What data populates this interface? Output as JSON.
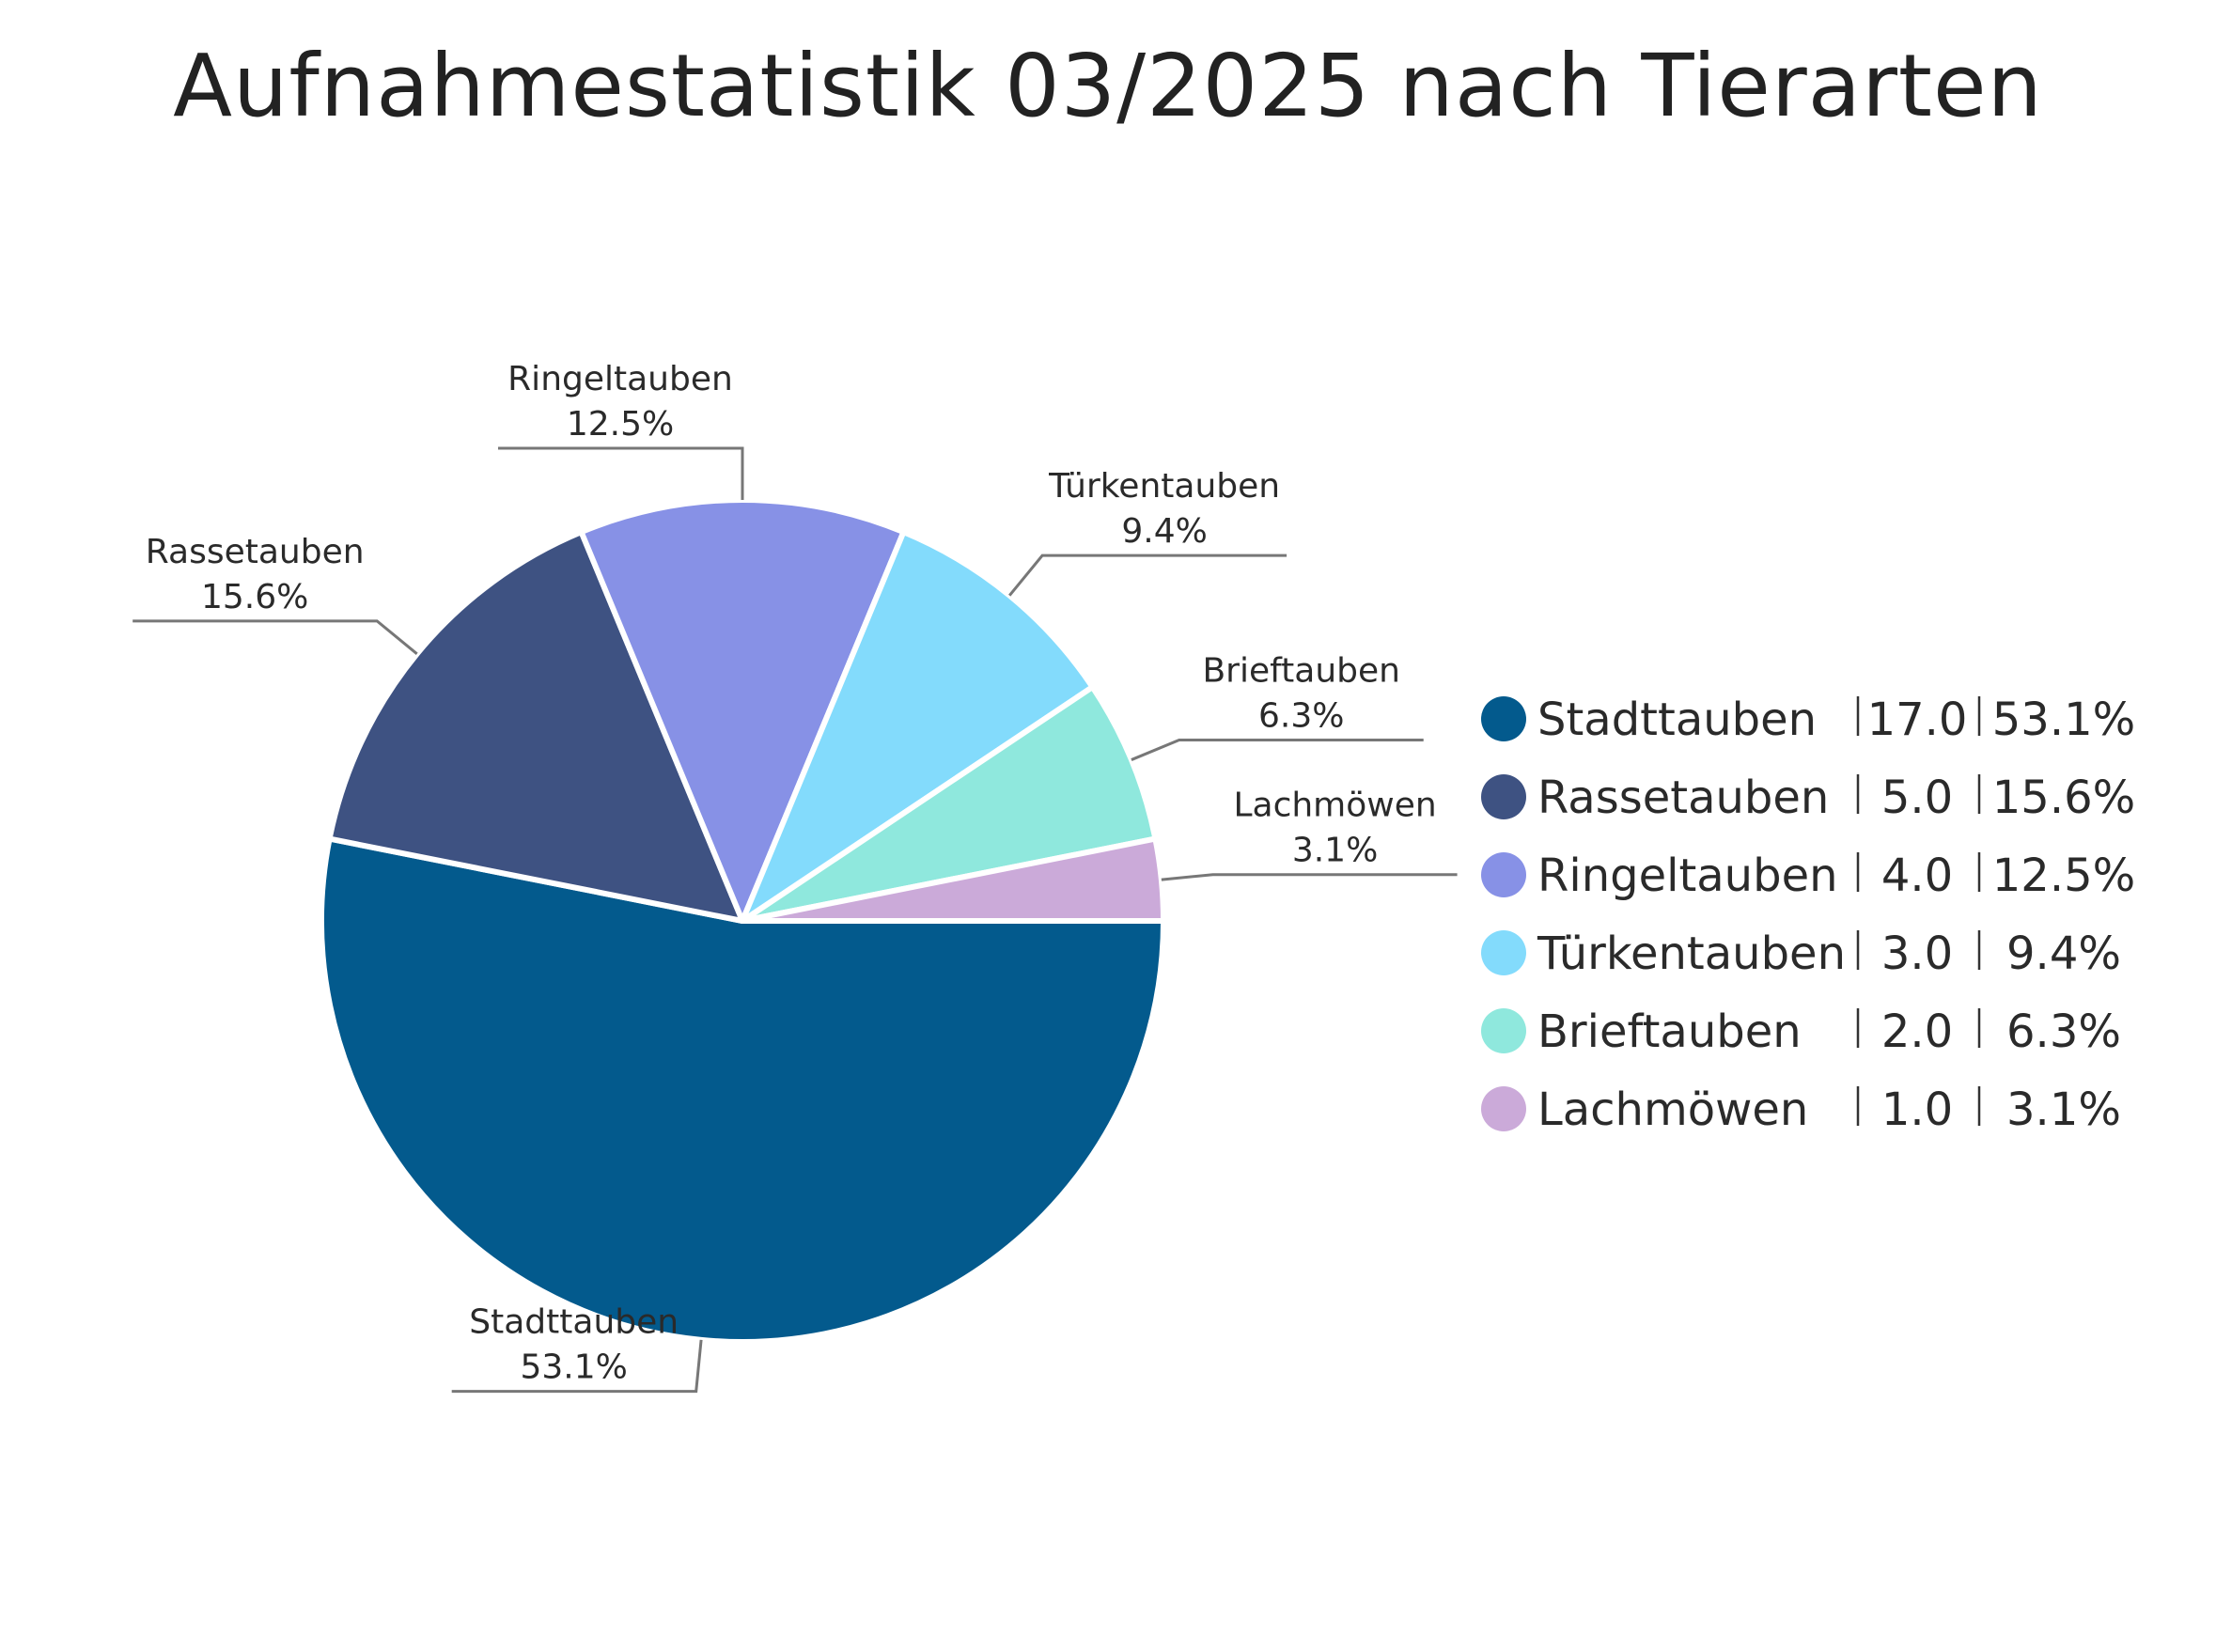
{
  "chart_data": {
    "type": "pie",
    "title": "Aufnahmestatistik 03/2025 nach Tierarten",
    "categories": [
      "Stadttauben",
      "Rassetauben",
      "Ringeltauben",
      "Türkentauben",
      "Brieftauben",
      "Lachmöwen"
    ],
    "values": [
      17.0,
      5.0,
      4.0,
      3.0,
      2.0,
      1.0
    ],
    "percent_labels": [
      "53.1%",
      "15.6%",
      "12.5%",
      "9.4%",
      "6.3%",
      "3.1%"
    ],
    "value_labels": [
      "17.0",
      "5.0",
      "4.0",
      "3.0",
      "2.0",
      "1.0"
    ],
    "colors": [
      "#035a8d",
      "#3e5282",
      "#8791e6",
      "#83dbfc",
      "#8fe8dd",
      "#cbaad9"
    ],
    "legend_position": "right"
  }
}
